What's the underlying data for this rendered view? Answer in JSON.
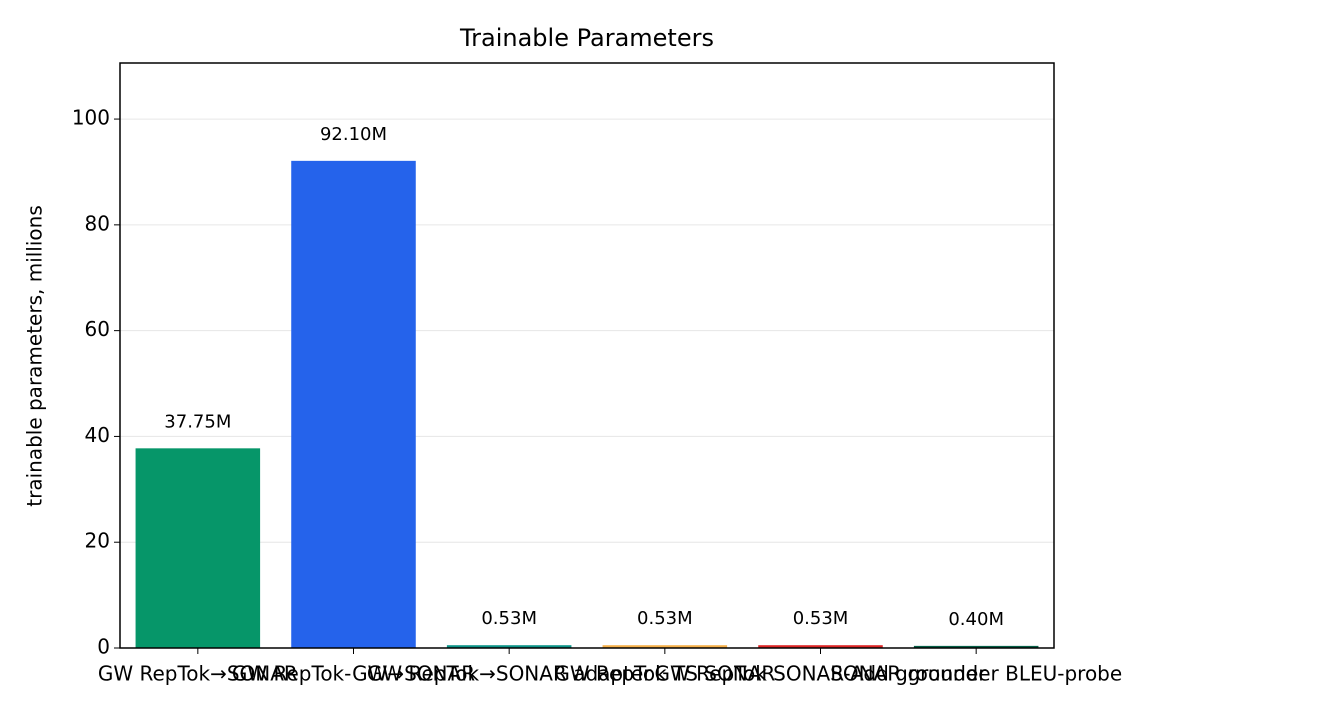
{
  "chart_data": {
    "type": "bar",
    "title": "Trainable Parameters",
    "ylabel": "trainable parameters, millions",
    "categories": [
      "GW RepTok→SONAR",
      "GW RepTok-GW→SONAR",
      "GW RepTok→SONAR adapter",
      "GW RepTok TS SONAR",
      "GW RepTok SONAR-Add grounder",
      "SONAR grounder BLEU-probe"
    ],
    "values": [
      37.75,
      92.1,
      0.53,
      0.53,
      0.53,
      0.4
    ],
    "value_labels": [
      "37.75M",
      "92.10M",
      "0.53M",
      "0.53M",
      "0.53M",
      "0.40M"
    ],
    "colors": [
      "#069669",
      "#2563eb",
      "#0d9488",
      "#f5b04a",
      "#dc2626",
      "#065f46"
    ],
    "ylim": [
      0,
      110.6
    ],
    "yticks": [
      0,
      20,
      40,
      60,
      80,
      100
    ],
    "grid": true
  }
}
